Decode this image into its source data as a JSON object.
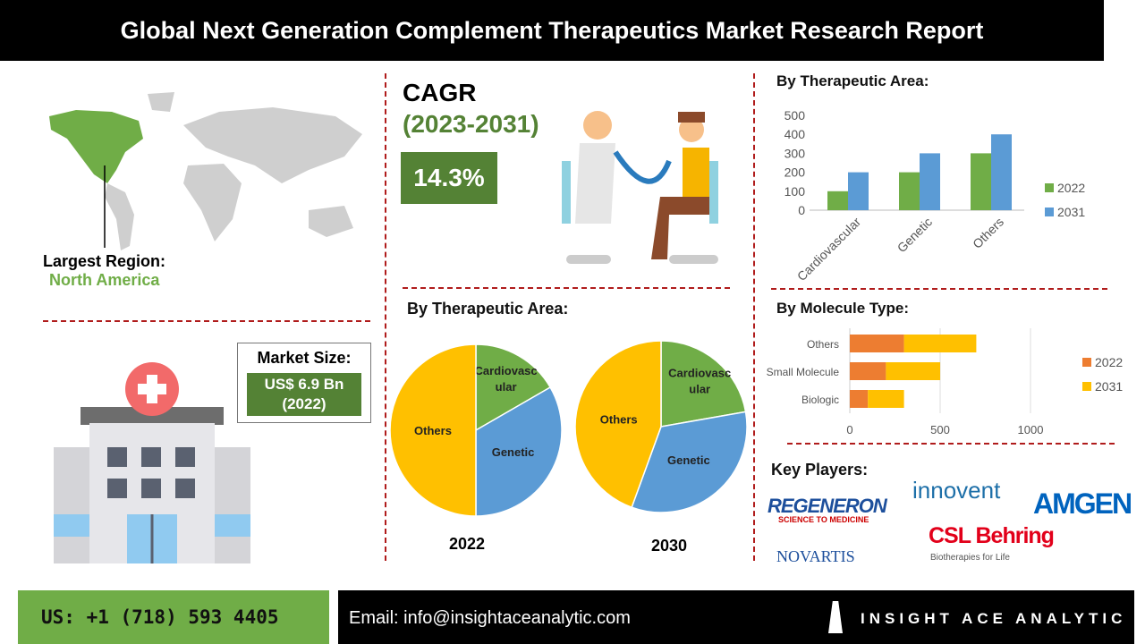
{
  "title": "Global Next Generation Complement Therapeutics Market Research Report",
  "region": {
    "label": "Largest Region:",
    "value": "North America"
  },
  "market": {
    "label": "Market Size:",
    "value": "US$ 6.9 Bn",
    "year": "(2022)"
  },
  "cagr": {
    "label": "CAGR",
    "period": "(2023-2031)",
    "value": "14.3%"
  },
  "key_players": {
    "label": "Key Players:",
    "logos": [
      "REGENERON",
      "SCIENCE TO MEDICINE",
      "innovent",
      "AMGEN",
      "NOVARTIS",
      "CSL Behring",
      "Biotherapies for Life"
    ]
  },
  "footer": {
    "phone": "US: +1 (718) 593 4405",
    "email": "Email: info@insightaceanalytic.com",
    "brand": "INSIGHT ACE ANALYTIC"
  },
  "colors": {
    "green": "#70ad47",
    "blue": "#5b9bd5",
    "orange": "#ed7d31",
    "yellow": "#ffc000",
    "dash": "#b01c1c",
    "dark_green": "#548235"
  },
  "chart_data": [
    {
      "type": "bar",
      "title": "By Therapeutic Area:",
      "categories": [
        "Cardiovascular",
        "Genetic",
        "Others"
      ],
      "series": [
        {
          "name": "2022",
          "values": [
            100,
            200,
            300
          ]
        },
        {
          "name": "2031",
          "values": [
            200,
            300,
            400
          ]
        }
      ],
      "ylim": [
        0,
        500
      ],
      "yticks": [
        "0",
        "100",
        "200",
        "300",
        "400",
        "500"
      ],
      "legend": "right",
      "grid": false
    },
    {
      "type": "bar",
      "orientation": "horizontal",
      "stacked": true,
      "title": "By Molecule Type:",
      "categories": [
        "Others",
        "Small Molecule",
        "Biologic"
      ],
      "series": [
        {
          "name": "2022",
          "values": [
            300,
            200,
            100
          ]
        },
        {
          "name": "2031",
          "values": [
            400,
            300,
            200
          ]
        }
      ],
      "xlim": [
        0,
        1300
      ],
      "xticks": [
        "0",
        "500",
        "1000"
      ],
      "legend": "right",
      "grid": true
    },
    {
      "type": "pie",
      "title": "By Therapeutic Area:",
      "caption": "2022",
      "labels": [
        "Cardiovascular",
        "Genetic",
        "Others"
      ],
      "display_labels": [
        "Cardiovasc ular",
        "Genetic",
        "Others"
      ],
      "values": [
        100,
        200,
        300
      ]
    },
    {
      "type": "pie",
      "caption": "2030",
      "labels": [
        "Cardiovascular",
        "Genetic",
        "Others"
      ],
      "display_labels": [
        "Cardiovasc ular",
        "Genetic",
        "Others"
      ],
      "values": [
        200,
        300,
        400
      ]
    }
  ]
}
